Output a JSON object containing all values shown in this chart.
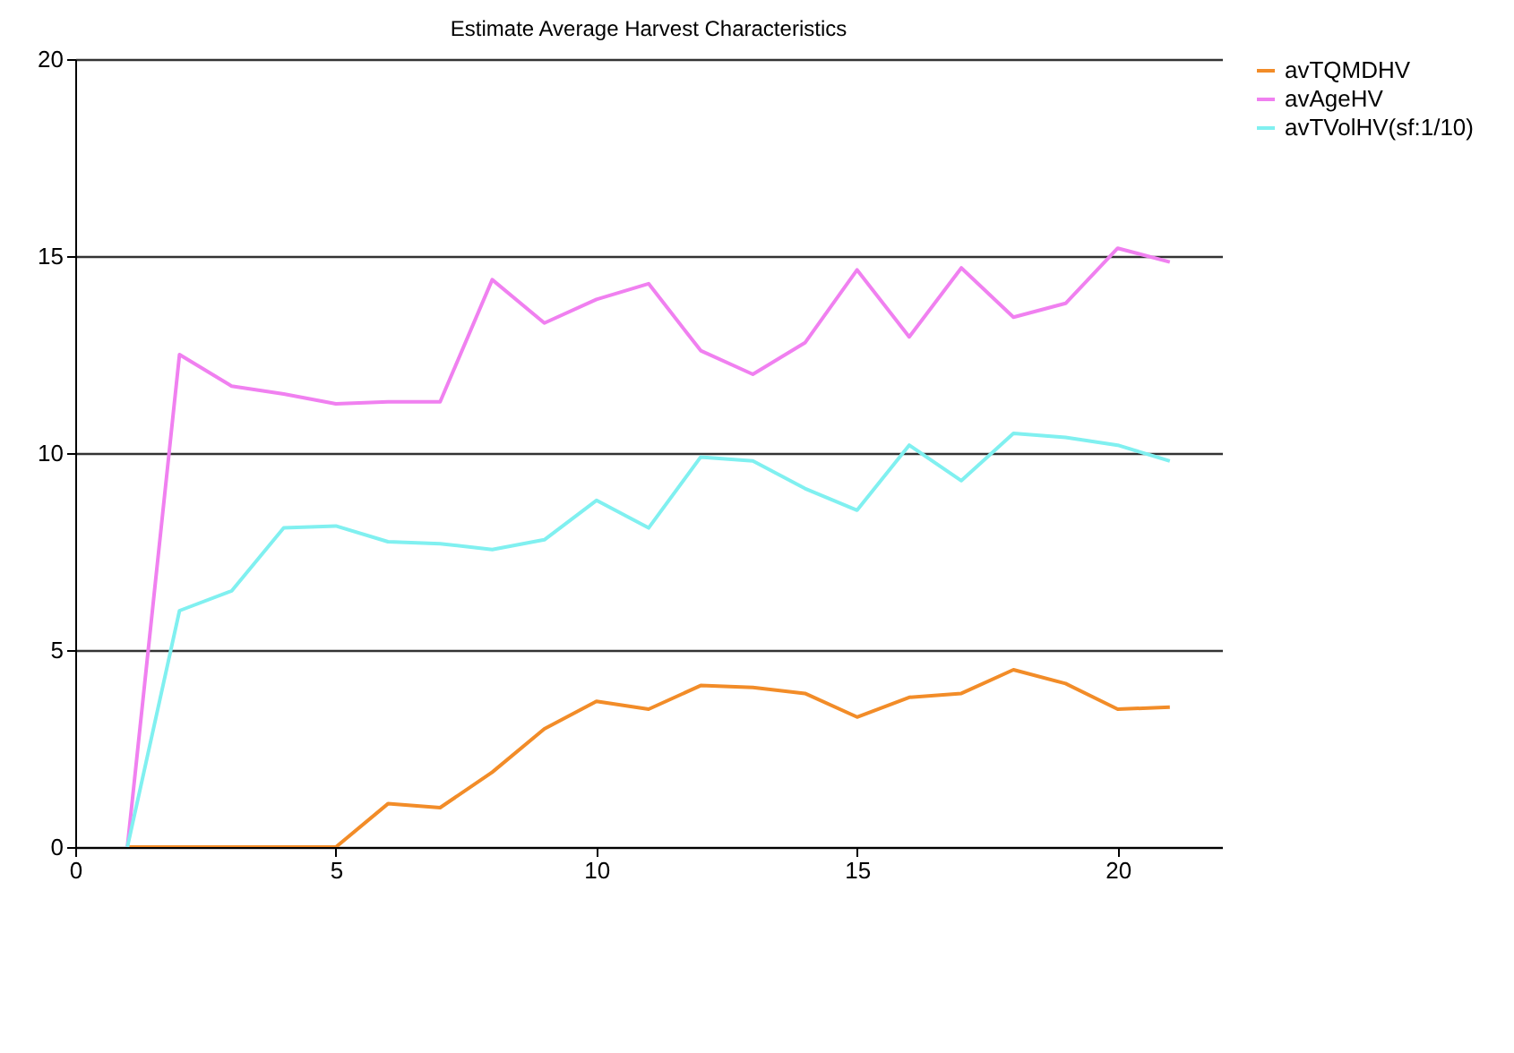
{
  "chart_data": {
    "type": "line",
    "title": "Estimate Average Harvest Characteristics",
    "x": [
      1,
      2,
      3,
      4,
      5,
      6,
      7,
      8,
      9,
      10,
      11,
      12,
      13,
      14,
      15,
      16,
      17,
      18,
      19,
      20,
      21
    ],
    "series": [
      {
        "name": "avTQMDHV",
        "color": "#f28c28",
        "values": [
          0,
          0,
          0,
          0,
          0,
          1.1,
          1.0,
          1.9,
          3.0,
          3.7,
          3.5,
          4.1,
          4.05,
          3.9,
          3.3,
          3.8,
          3.9,
          4.5,
          4.15,
          3.5,
          3.55
        ]
      },
      {
        "name": "avAgeHV",
        "color": "#f080f0",
        "values": [
          0,
          12.5,
          11.7,
          11.5,
          11.25,
          11.3,
          11.3,
          14.4,
          13.3,
          13.9,
          14.3,
          12.6,
          12.0,
          12.8,
          14.65,
          12.95,
          14.7,
          13.45,
          13.8,
          15.2,
          14.85
        ]
      },
      {
        "name": "avTVolHV(sf:1/10)",
        "color": "#80f0f0",
        "values": [
          0,
          6.0,
          6.5,
          8.1,
          8.15,
          7.75,
          7.7,
          7.55,
          7.8,
          8.8,
          8.1,
          9.9,
          9.8,
          9.1,
          8.55,
          10.2,
          9.3,
          10.5,
          10.4,
          10.2,
          9.8
        ]
      }
    ],
    "xlim": [
      0,
      22
    ],
    "xticks": [
      0,
      5,
      10,
      15,
      20
    ],
    "ylim": [
      0,
      20
    ],
    "yticks": [
      0,
      5,
      10,
      15,
      20
    ],
    "grid": "y",
    "legend": "right",
    "marker": "none",
    "line_style": "solid"
  }
}
